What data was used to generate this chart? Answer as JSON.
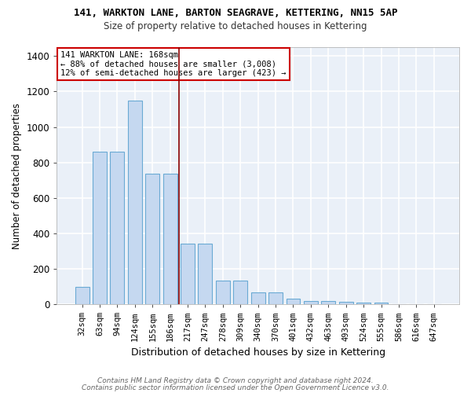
{
  "title1": "141, WARKTON LANE, BARTON SEAGRAVE, KETTERING, NN15 5AP",
  "title2": "Size of property relative to detached houses in Kettering",
  "xlabel": "Distribution of detached houses by size in Kettering",
  "ylabel": "Number of detached properties",
  "categories": [
    "32sqm",
    "63sqm",
    "94sqm",
    "124sqm",
    "155sqm",
    "186sqm",
    "217sqm",
    "247sqm",
    "278sqm",
    "309sqm",
    "340sqm",
    "370sqm",
    "401sqm",
    "432sqm",
    "463sqm",
    "493sqm",
    "524sqm",
    "555sqm",
    "586sqm",
    "616sqm",
    "647sqm"
  ],
  "values": [
    100,
    860,
    860,
    1150,
    735,
    735,
    340,
    340,
    135,
    135,
    65,
    65,
    30,
    20,
    20,
    15,
    10,
    10,
    0,
    0,
    0
  ],
  "bar_color": "#c5d8f0",
  "bar_edgecolor": "#6aaad4",
  "background_color": "#eaf0f8",
  "grid_color": "#ffffff",
  "annotation_text": "141 WARKTON LANE: 168sqm\n← 88% of detached houses are smaller (3,008)\n12% of semi-detached houses are larger (423) →",
  "vline_x_index": 5.5,
  "vline_color": "#8b0000",
  "annotation_box_color": "#ffffff",
  "annotation_box_edgecolor": "#cc0000",
  "ylim": [
    0,
    1450
  ],
  "yticks": [
    0,
    200,
    400,
    600,
    800,
    1000,
    1200,
    1400
  ],
  "footer1": "Contains HM Land Registry data © Crown copyright and database right 2024.",
  "footer2": "Contains public sector information licensed under the Open Government Licence v3.0."
}
